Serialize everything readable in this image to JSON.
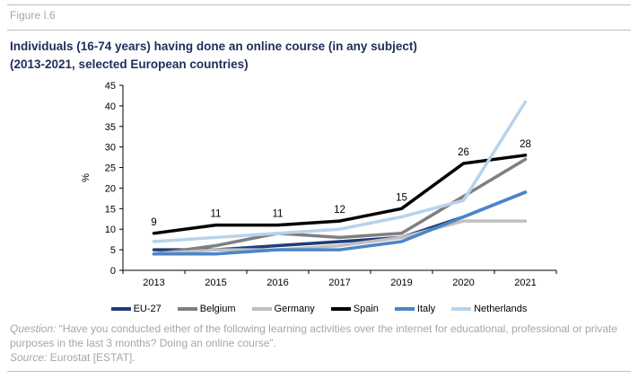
{
  "figure_label": "Figure I.6",
  "title_line1": "Individuals (16-74 years) having done an online course (in any subject)",
  "title_line2": "(2013-2021, selected European countries)",
  "question_label": "Question:",
  "question_text": " “Have you conducted either of the following learning activities over the internet for educational, professional or private purposes in the last 3 months? Doing an online course”.",
  "source_label": "Source:",
  "source_text": " Eurostat [ESTAT].",
  "chart_data": {
    "type": "line",
    "categories": [
      "2013",
      "2015",
      "2016",
      "2017",
      "2019",
      "2020",
      "2021"
    ],
    "ylabel": "%",
    "ylim": [
      0,
      45
    ],
    "yticks": [
      0,
      5,
      10,
      15,
      20,
      25,
      30,
      35,
      40,
      45
    ],
    "grid": false,
    "legend_position": "bottom",
    "series": [
      {
        "name": "EU-27",
        "color": "#1f3d7a",
        "values": [
          5,
          5,
          6,
          7,
          8,
          13,
          19
        ]
      },
      {
        "name": "Belgium",
        "color": "#7f7f7f",
        "values": [
          4,
          6,
          9,
          8,
          9,
          18,
          27
        ]
      },
      {
        "name": "Germany",
        "color": "#c0c0c0",
        "values": [
          4,
          5,
          5,
          6,
          8,
          12,
          12
        ]
      },
      {
        "name": "Spain",
        "color": "#000000",
        "values": [
          9,
          11,
          11,
          12,
          15,
          26,
          28
        ],
        "data_labels": [
          "9",
          "11",
          "11",
          "12",
          "15",
          "26",
          "28"
        ]
      },
      {
        "name": "Italy",
        "color": "#4a86c8",
        "values": [
          4,
          4,
          5,
          5,
          7,
          13,
          19
        ]
      },
      {
        "name": "Netherlands",
        "color": "#b8d3eb",
        "values": [
          7,
          8,
          9,
          10,
          13,
          17,
          41
        ]
      }
    ]
  }
}
